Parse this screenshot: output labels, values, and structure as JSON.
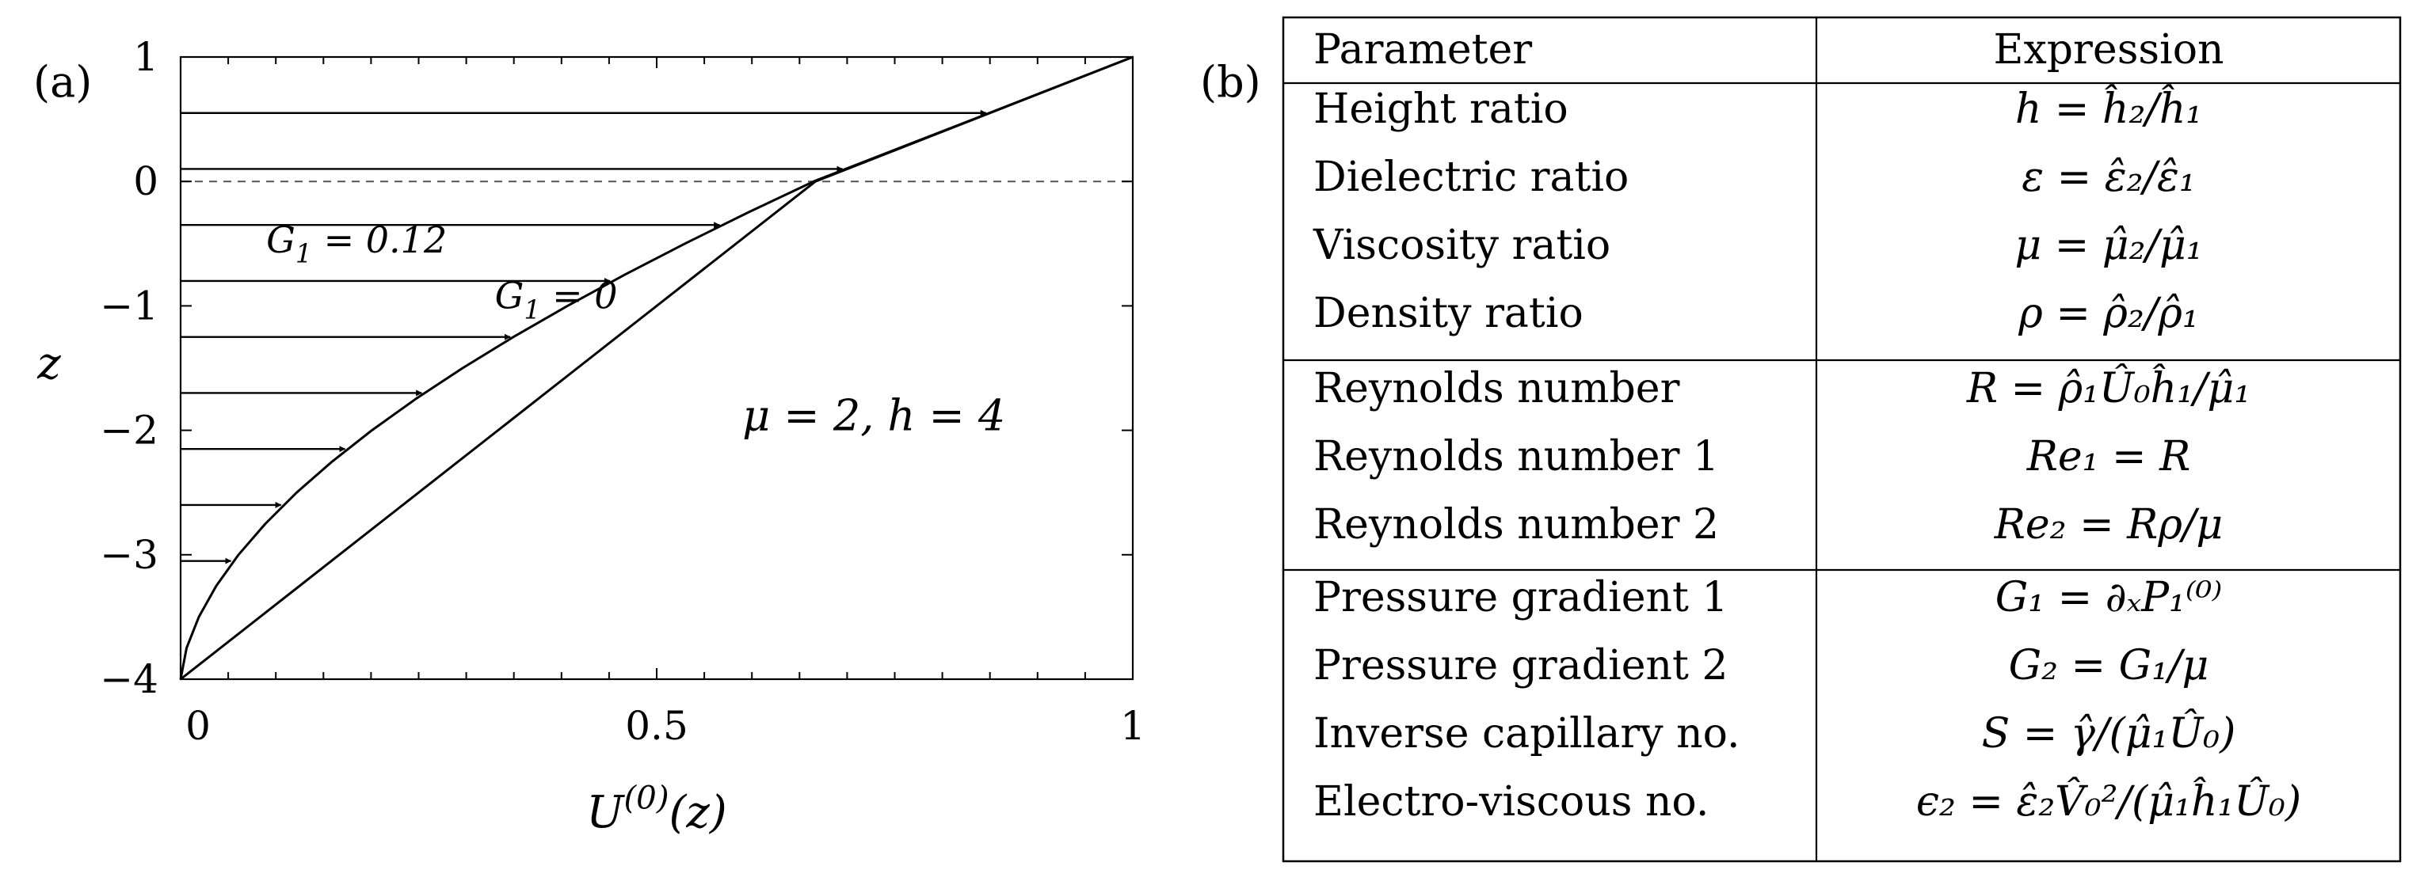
{
  "chart_data": [
    {
      "panel_label": "(a)",
      "type": "line",
      "xlabel": "U^{(0)}(z)",
      "ylabel": "z",
      "xlim": [
        0,
        1
      ],
      "ylim": [
        -4,
        1
      ],
      "xticks": [
        {
          "v": 0,
          "label": "0"
        },
        {
          "v": 0.5,
          "label": "0.5"
        },
        {
          "v": 1,
          "label": "1"
        }
      ],
      "yticks": [
        {
          "v": 1,
          "label": "1"
        },
        {
          "v": 0,
          "label": "0"
        },
        {
          "v": -1,
          "label": "−1"
        },
        {
          "v": -2,
          "label": "−2"
        },
        {
          "v": -3,
          "label": "−3"
        },
        {
          "v": -4,
          "label": "−4"
        }
      ],
      "interface_z": 0,
      "grid": false,
      "series": [
        {
          "name": "G_1 = 0.12",
          "points": [
            [
              0,
              -4
            ],
            [
              0.0062,
              -3.75
            ],
            [
              0.0191,
              -3.5
            ],
            [
              0.0374,
              -3.25
            ],
            [
              0.0608,
              -3
            ],
            [
              0.0891,
              -2.75
            ],
            [
              0.1219,
              -2.5
            ],
            [
              0.1593,
              -2.25
            ],
            [
              0.2009,
              -2
            ],
            [
              0.2466,
              -1.75
            ],
            [
              0.2962,
              -1.5
            ],
            [
              0.3495,
              -1.25
            ],
            [
              0.4063,
              -1
            ],
            [
              0.4664,
              -0.75
            ],
            [
              0.5296,
              -0.5
            ],
            [
              0.5958,
              -0.25
            ],
            [
              0.6649,
              0
            ],
            [
              0.7487,
              0.25
            ],
            [
              0.8326,
              0.5
            ],
            [
              0.9163,
              0.75
            ],
            [
              1,
              1
            ]
          ]
        },
        {
          "name": "G_1 = 0",
          "points": [
            [
              0,
              -4
            ],
            [
              0.6667,
              0
            ],
            [
              1,
              1
            ]
          ]
        }
      ],
      "profile_arrows_z": [
        -3.05,
        -2.6,
        -2.15,
        -1.7,
        -1.25,
        -0.8,
        -0.35,
        0.1,
        0.55
      ],
      "annotations": [
        {
          "text": "G_1 = 0.12",
          "x": 0.09,
          "y": -0.57
        },
        {
          "text": "G_1 = 0",
          "x": 0.33,
          "y": -1.02
        },
        {
          "text": "μ = 2, h = 4",
          "x": 0.59,
          "y": -2.0
        }
      ]
    },
    {
      "panel_label": "(b)",
      "type": "table",
      "columns": [
        "Parameter",
        "Expression"
      ],
      "groups": [
        [
          {
            "param": "Height ratio",
            "expr": "h = ĥ₂/ĥ₁"
          },
          {
            "param": "Dielectric ratio",
            "expr": "ε = ε̂₂/ε̂₁"
          },
          {
            "param": "Viscosity ratio",
            "expr": "μ = μ̂₂/μ̂₁"
          },
          {
            "param": "Density ratio",
            "expr": "ρ = ρ̂₂/ρ̂₁"
          }
        ],
        [
          {
            "param": "Reynolds number",
            "expr": "R = ρ̂₁Û₀ĥ₁/μ̂₁"
          },
          {
            "param": "Reynolds number 1",
            "expr": "Re₁ = R"
          },
          {
            "param": "Reynolds number 2",
            "expr": "Re₂ = Rρ/μ"
          }
        ],
        [
          {
            "param": "Pressure gradient 1",
            "expr": "G₁ = ∂ₓP₁⁽⁰⁾"
          },
          {
            "param": "Pressure gradient 2",
            "expr": "G₂ = G₁/μ"
          },
          {
            "param": "Inverse capillary no.",
            "expr": "S = γ̂/(μ̂₁Û₀)"
          },
          {
            "param": "Electro-viscous no.",
            "expr": "ϵ₂ = ε̂₂V̂₀²/(μ̂₁ĥ₁Û₀)"
          }
        ]
      ]
    }
  ]
}
